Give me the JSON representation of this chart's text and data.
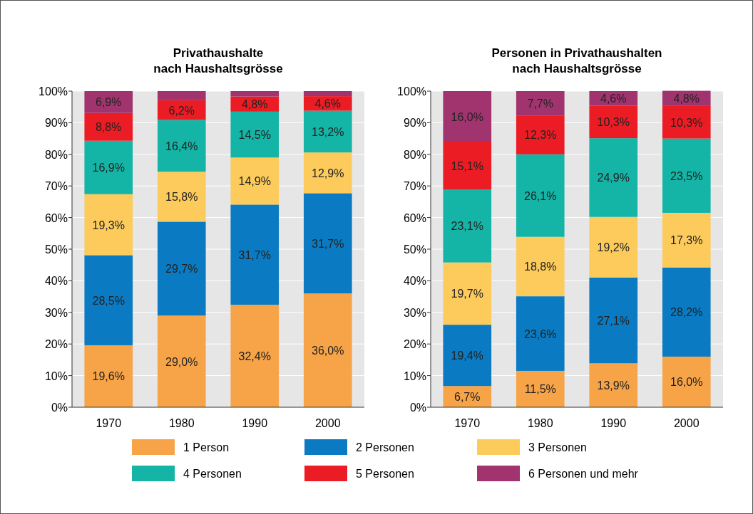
{
  "chart_data": [
    {
      "type": "bar",
      "stacked": true,
      "title": "Privathaushalte\nnach Haushaltsgrösse",
      "categories": [
        "1970",
        "1980",
        "1990",
        "2000"
      ],
      "ylim": [
        0,
        100
      ],
      "yticks": [
        {
          "value": 0,
          "label": "0%"
        },
        {
          "value": 10,
          "label": "10%"
        },
        {
          "value": 20,
          "label": "20%"
        },
        {
          "value": 30,
          "label": "30%"
        },
        {
          "value": 40,
          "label": "40%"
        },
        {
          "value": 50,
          "label": "50%"
        },
        {
          "value": 60,
          "label": "60%"
        },
        {
          "value": 70,
          "label": "70%"
        },
        {
          "value": 80,
          "label": "80%"
        },
        {
          "value": 90,
          "label": "90%"
        },
        {
          "value": 100,
          "label": "100%"
        }
      ],
      "grid": "y",
      "legend": "bottom",
      "series": [
        {
          "name": "1 Person",
          "color": "#f7a448",
          "values": [
            19.6,
            29.0,
            32.4,
            36.0
          ],
          "value_labels": [
            "19,6%",
            "29,0%",
            "32,4%",
            "36,0%"
          ]
        },
        {
          "name": "2 Personen",
          "color": "#0a7bc2",
          "values": [
            28.5,
            29.7,
            31.7,
            31.7
          ],
          "value_labels": [
            "28,5%",
            "29,7%",
            "31,7%",
            "31,7%"
          ]
        },
        {
          "name": "3 Personen",
          "color": "#fccb5c",
          "values": [
            19.3,
            15.8,
            14.9,
            12.9
          ],
          "value_labels": [
            "19,3%",
            "15,8%",
            "14,9%",
            "12,9%"
          ]
        },
        {
          "name": "4 Personen",
          "color": "#14b5a6",
          "values": [
            16.9,
            16.4,
            14.5,
            13.2
          ],
          "value_labels": [
            "16,9%",
            "16,4%",
            "14,5%",
            "13,2%"
          ]
        },
        {
          "name": "5 Personen",
          "color": "#ec1c24",
          "values": [
            8.8,
            6.2,
            4.8,
            4.6
          ],
          "value_labels": [
            "8,8%",
            "6,2%",
            "4,8%",
            "4,6%"
          ]
        },
        {
          "name": "6 Personen und mehr",
          "color": "#a1346f",
          "values": [
            6.9,
            2.9,
            1.7,
            1.6
          ],
          "value_labels": [
            "6,9%",
            null,
            null,
            null
          ]
        }
      ]
    },
    {
      "type": "bar",
      "stacked": true,
      "title": "Personen in Privathaushalten\nnach Haushaltsgrösse",
      "categories": [
        "1970",
        "1980",
        "1990",
        "2000"
      ],
      "ylim": [
        0,
        100
      ],
      "yticks": [
        {
          "value": 0,
          "label": "0%"
        },
        {
          "value": 10,
          "label": "10%"
        },
        {
          "value": 20,
          "label": "20%"
        },
        {
          "value": 30,
          "label": "30%"
        },
        {
          "value": 40,
          "label": "40%"
        },
        {
          "value": 50,
          "label": "50%"
        },
        {
          "value": 60,
          "label": "60%"
        },
        {
          "value": 70,
          "label": "70%"
        },
        {
          "value": 80,
          "label": "80%"
        },
        {
          "value": 90,
          "label": "90%"
        },
        {
          "value": 100,
          "label": "100%"
        }
      ],
      "grid": "y",
      "series": [
        {
          "color": "#f7a448",
          "values": [
            6.7,
            11.5,
            13.9,
            16.0
          ],
          "value_labels": [
            "6,7%",
            "11,5%",
            "13,9%",
            "16,0%"
          ]
        },
        {
          "color": "#0a7bc2",
          "values": [
            19.4,
            23.6,
            27.1,
            28.2
          ],
          "value_labels": [
            "19,4%",
            "23,6%",
            "27,1%",
            "28,2%"
          ]
        },
        {
          "color": "#fccb5c",
          "values": [
            19.7,
            18.8,
            19.2,
            17.3
          ],
          "value_labels": [
            "19,7%",
            "18,8%",
            "19,2%",
            "17,3%"
          ]
        },
        {
          "color": "#14b5a6",
          "values": [
            23.1,
            26.1,
            24.9,
            23.5
          ],
          "value_labels": [
            "23,1%",
            "26,1%",
            "24,9%",
            "23,5%"
          ]
        },
        {
          "color": "#ec1c24",
          "values": [
            15.1,
            12.3,
            10.3,
            10.3
          ],
          "value_labels": [
            "15,1%",
            "12,3%",
            "10,3%",
            "10,3%"
          ]
        },
        {
          "color": "#a1346f",
          "values": [
            16.0,
            7.7,
            4.6,
            4.8
          ],
          "value_labels": [
            "16,0%",
            "7,7%",
            "4,6%",
            "4,8%"
          ]
        }
      ]
    }
  ]
}
